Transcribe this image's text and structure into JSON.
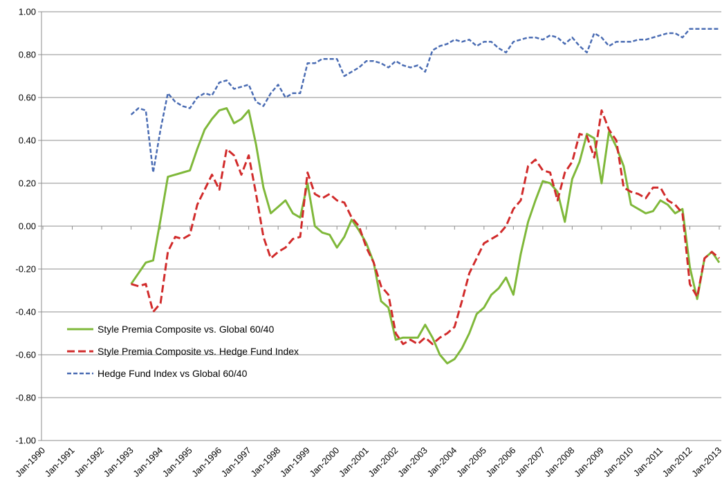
{
  "chart_data": {
    "type": "line",
    "x": [
      1993,
      1993.25,
      1993.5,
      1993.75,
      1994,
      1994.25,
      1994.5,
      1994.75,
      1995,
      1995.25,
      1995.5,
      1995.75,
      1996,
      1996.25,
      1996.5,
      1996.75,
      1997,
      1997.25,
      1997.5,
      1997.75,
      1998,
      1998.25,
      1998.5,
      1998.75,
      1999,
      1999.25,
      1999.5,
      1999.75,
      2000,
      2000.25,
      2000.5,
      2000.75,
      2001,
      2001.25,
      2001.5,
      2001.75,
      2002,
      2002.25,
      2002.5,
      2002.75,
      2003,
      2003.25,
      2003.5,
      2003.75,
      2004,
      2004.25,
      2004.5,
      2004.75,
      2005,
      2005.25,
      2005.5,
      2005.75,
      2006,
      2006.25,
      2006.5,
      2006.75,
      2007,
      2007.25,
      2007.5,
      2007.75,
      2008,
      2008.25,
      2008.5,
      2008.75,
      2009,
      2009.25,
      2009.5,
      2009.75,
      2010,
      2010.25,
      2010.5,
      2010.75,
      2011,
      2011.25,
      2011.5,
      2011.75,
      2012,
      2012.25,
      2012.5,
      2012.75,
      2013
    ],
    "series": [
      {
        "name": "Style Premia Composite vs. Global 60/40",
        "color": "#7fb83a",
        "values": [
          -0.27,
          -0.22,
          -0.17,
          -0.16,
          0.03,
          0.23,
          0.24,
          0.25,
          0.26,
          0.36,
          0.45,
          0.5,
          0.54,
          0.55,
          0.48,
          0.5,
          0.54,
          0.38,
          0.18,
          0.06,
          0.09,
          0.12,
          0.06,
          0.04,
          0.2,
          0.0,
          -0.03,
          -0.04,
          -0.1,
          -0.05,
          0.03,
          -0.02,
          -0.08,
          -0.17,
          -0.35,
          -0.38,
          -0.53,
          -0.52,
          -0.52,
          -0.52,
          -0.46,
          -0.52,
          -0.6,
          -0.64,
          -0.62,
          -0.57,
          -0.5,
          -0.41,
          -0.38,
          -0.32,
          -0.29,
          -0.24,
          -0.32,
          -0.13,
          0.02,
          0.12,
          0.21,
          0.2,
          0.16,
          0.02,
          0.22,
          0.3,
          0.43,
          0.41,
          0.2,
          0.44,
          0.37,
          0.28,
          0.1,
          0.08,
          0.06,
          0.07,
          0.12,
          0.1,
          0.06,
          0.08,
          -0.19,
          -0.34,
          -0.15,
          -0.12,
          -0.17
        ]
      },
      {
        "name": "Style Premia Composite vs. Hedge Fund Index",
        "color": "#d12b2b",
        "values": [
          -0.27,
          -0.28,
          -0.27,
          -0.4,
          -0.36,
          -0.12,
          -0.05,
          -0.06,
          -0.04,
          0.1,
          0.17,
          0.24,
          0.17,
          0.36,
          0.33,
          0.24,
          0.33,
          0.15,
          -0.05,
          -0.15,
          -0.12,
          -0.1,
          -0.06,
          -0.05,
          0.25,
          0.15,
          0.13,
          0.15,
          0.12,
          0.11,
          0.04,
          0.0,
          -0.1,
          -0.17,
          -0.28,
          -0.32,
          -0.5,
          -0.55,
          -0.53,
          -0.55,
          -0.52,
          -0.55,
          -0.52,
          -0.5,
          -0.47,
          -0.35,
          -0.22,
          -0.15,
          -0.08,
          -0.06,
          -0.04,
          0.0,
          0.08,
          0.12,
          0.28,
          0.31,
          0.26,
          0.25,
          0.12,
          0.25,
          0.3,
          0.43,
          0.42,
          0.32,
          0.54,
          0.45,
          0.4,
          0.18,
          0.16,
          0.15,
          0.13,
          0.18,
          0.18,
          0.12,
          0.1,
          0.06,
          -0.27,
          -0.33,
          -0.15,
          -0.12,
          -0.15
        ]
      },
      {
        "name": "Hedge Fund Index vs Global 60/40",
        "color": "#4a6cb3",
        "values": [
          0.52,
          0.55,
          0.54,
          0.25,
          0.45,
          0.62,
          0.58,
          0.56,
          0.55,
          0.6,
          0.62,
          0.61,
          0.67,
          0.68,
          0.64,
          0.65,
          0.66,
          0.58,
          0.56,
          0.62,
          0.66,
          0.6,
          0.62,
          0.62,
          0.76,
          0.76,
          0.78,
          0.78,
          0.78,
          0.7,
          0.72,
          0.74,
          0.77,
          0.77,
          0.76,
          0.74,
          0.77,
          0.75,
          0.74,
          0.75,
          0.72,
          0.82,
          0.84,
          0.85,
          0.87,
          0.86,
          0.87,
          0.84,
          0.86,
          0.86,
          0.83,
          0.81,
          0.86,
          0.87,
          0.88,
          0.88,
          0.87,
          0.89,
          0.88,
          0.85,
          0.88,
          0.84,
          0.81,
          0.9,
          0.88,
          0.84,
          0.86,
          0.86,
          0.86,
          0.87,
          0.87,
          0.88,
          0.89,
          0.9,
          0.9,
          0.88,
          0.92,
          0.92,
          0.92,
          0.92,
          0.92
        ]
      }
    ],
    "xlim": [
      1990,
      2013
    ],
    "xticks": [
      {
        "value": 1990,
        "label": "Jan-1990"
      },
      {
        "value": 1991,
        "label": "Jan-1991"
      },
      {
        "value": 1992,
        "label": "Jan-1992"
      },
      {
        "value": 1993,
        "label": "Jan-1993"
      },
      {
        "value": 1994,
        "label": "Jan-1994"
      },
      {
        "value": 1995,
        "label": "Jan-1995"
      },
      {
        "value": 1996,
        "label": "Jan-1996"
      },
      {
        "value": 1997,
        "label": "Jan-1997"
      },
      {
        "value": 1998,
        "label": "Jan-1998"
      },
      {
        "value": 1999,
        "label": "Jan-1999"
      },
      {
        "value": 2000,
        "label": "Jan-2000"
      },
      {
        "value": 2001,
        "label": "Jan-2001"
      },
      {
        "value": 2002,
        "label": "Jan-2002"
      },
      {
        "value": 2003,
        "label": "Jan-2003"
      },
      {
        "value": 2004,
        "label": "Jan-2004"
      },
      {
        "value": 2005,
        "label": "Jan-2005"
      },
      {
        "value": 2006,
        "label": "Jan-2006"
      },
      {
        "value": 2007,
        "label": "Jan-2007"
      },
      {
        "value": 2008,
        "label": "Jan-2008"
      },
      {
        "value": 2009,
        "label": "Jan-2009"
      },
      {
        "value": 2010,
        "label": "Jan-2010"
      },
      {
        "value": 2011,
        "label": "Jan-2011"
      },
      {
        "value": 2012,
        "label": "Jan-2012"
      },
      {
        "value": 2013,
        "label": "Jan-2013"
      }
    ],
    "ylim": [
      -1,
      1
    ],
    "yticks": [
      {
        "value": -1,
        "label": "-1.00"
      },
      {
        "value": -0.8,
        "label": "-0.80"
      },
      {
        "value": -0.6,
        "label": "-0.60"
      },
      {
        "value": -0.4,
        "label": "-0.40"
      },
      {
        "value": -0.2,
        "label": "-0.20"
      },
      {
        "value": 0,
        "label": "0.00"
      },
      {
        "value": 0.2,
        "label": "0.20"
      },
      {
        "value": 0.4,
        "label": "0.40"
      },
      {
        "value": 0.6,
        "label": "0.60"
      },
      {
        "value": 0.8,
        "label": "0.80"
      },
      {
        "value": 1,
        "label": "1.00"
      }
    ],
    "grid": true
  }
}
